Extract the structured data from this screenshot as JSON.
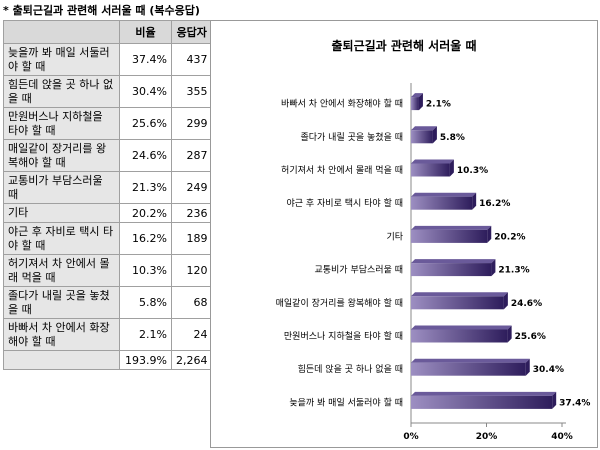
{
  "table": {
    "title": "* 출퇴근길과 관련해 서러울 때 (복수응답)",
    "headers": [
      "",
      "비율",
      "응답자"
    ],
    "rows": [
      {
        "label": "늦을까 봐 매일 서둘러야 할 때",
        "pct": "37.4%",
        "n": "437"
      },
      {
        "label": "힘든데 앉을 곳 하나 없을 때",
        "pct": "30.4%",
        "n": "355"
      },
      {
        "label": "만원버스나 지하철을 타야 할 때",
        "pct": "25.6%",
        "n": "299"
      },
      {
        "label": "매일같이 장거리를 왕복해야 할 때",
        "pct": "24.6%",
        "n": "287"
      },
      {
        "label": "교통비가 부담스러울 때",
        "pct": "21.3%",
        "n": "249"
      },
      {
        "label": "기타",
        "pct": "20.2%",
        "n": "236"
      },
      {
        "label": "야근 후 자비로 택시 타야 할 때",
        "pct": "16.2%",
        "n": "189"
      },
      {
        "label": "허기져서 차 안에서 몰래 먹을 때",
        "pct": "10.3%",
        "n": "120"
      },
      {
        "label": "졸다가 내릴 곳을 놓쳤을 때",
        "pct": "5.8%",
        "n": "68"
      },
      {
        "label": "바빠서 차 안에서 화장해야 할 때",
        "pct": "2.1%",
        "n": "24"
      }
    ],
    "total": {
      "label": "",
      "pct": "193.9%",
      "n": "2,264"
    }
  },
  "chart_data": {
    "type": "bar",
    "orientation": "horizontal",
    "title": "출퇴근길과 관련해 서러울 때",
    "categories": [
      "바빠서 차 안에서 화장해야 할 때",
      "졸다가 내릴 곳을 놓쳤을 때",
      "허기져서 차 안에서 몰래 먹을 때",
      "야근 후 자비로 택시 타야 할 때",
      "기타",
      "교통비가 부담스러울 때",
      "매일같이 장거리를 왕복해야 할 때",
      "만원버스나 지하철을 타야 할 때",
      "힘든데 앉을 곳 하나 없을 때",
      "늦을까 봐 매일 서둘러야 할 때"
    ],
    "values": [
      2.1,
      5.8,
      10.3,
      16.2,
      20.2,
      21.3,
      24.6,
      25.6,
      30.4,
      37.4
    ],
    "value_labels": [
      "2.1%",
      "5.8%",
      "10.3%",
      "16.2%",
      "20.2%",
      "21.3%",
      "24.6%",
      "25.6%",
      "30.4%",
      "37.4%"
    ],
    "xlim": [
      0,
      40
    ],
    "xticks": [
      0,
      20,
      40
    ],
    "xtick_labels": [
      "0%",
      "20%",
      "40%"
    ],
    "grid": false,
    "colors": {
      "bar_dark": "#2e1d5c",
      "bar_light": "#9d8fc2",
      "bar_top": "#6a5a9a"
    }
  }
}
